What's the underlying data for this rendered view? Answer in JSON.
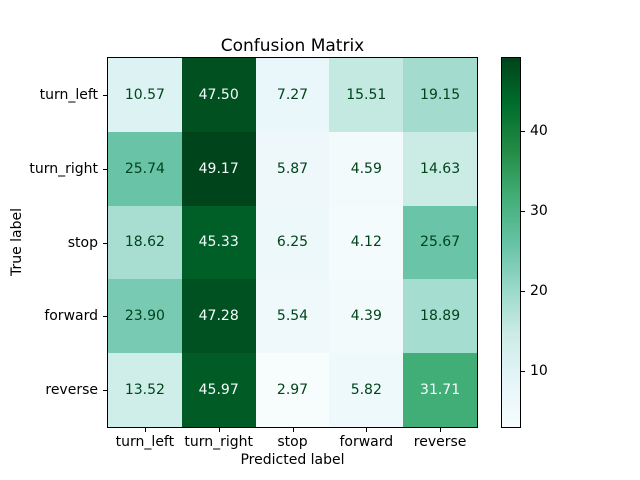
{
  "chart_data": {
    "type": "heatmap",
    "title": "Confusion Matrix",
    "xlabel": "Predicted label",
    "ylabel": "True label",
    "x_categories": [
      "turn_left",
      "turn_right",
      "stop",
      "forward",
      "reverse"
    ],
    "y_categories": [
      "turn_left",
      "turn_right",
      "stop",
      "forward",
      "reverse"
    ],
    "rows": [
      {
        "label": "turn_left",
        "values": [
          10.57,
          47.5,
          7.27,
          15.51,
          19.15
        ]
      },
      {
        "label": "turn_right",
        "values": [
          25.74,
          49.17,
          5.87,
          4.59,
          14.63
        ]
      },
      {
        "label": "stop",
        "values": [
          18.62,
          45.33,
          6.25,
          4.12,
          25.67
        ]
      },
      {
        "label": "forward",
        "values": [
          23.9,
          47.28,
          5.54,
          4.39,
          18.89
        ]
      },
      {
        "label": "reverse",
        "values": [
          13.52,
          45.97,
          2.97,
          5.82,
          31.71
        ]
      }
    ],
    "value_decimals": 2,
    "vmin": 2.97,
    "vmax": 49.17,
    "colormap": "BuGn",
    "colormap_stops": [
      "#f7fcfd",
      "#e5f5f9",
      "#ccece6",
      "#99d8c9",
      "#66c2a4",
      "#41ae76",
      "#238b45",
      "#006d2c",
      "#00441b"
    ],
    "cell_text_color_dark": "#00441b",
    "cell_text_color_light": "#f7fcfd",
    "axis_text_color": "#000000",
    "colorbar": {
      "ticks": [
        10,
        20,
        30,
        40
      ],
      "orientation": "vertical",
      "position": "right"
    },
    "grid": false,
    "legend": false
  }
}
